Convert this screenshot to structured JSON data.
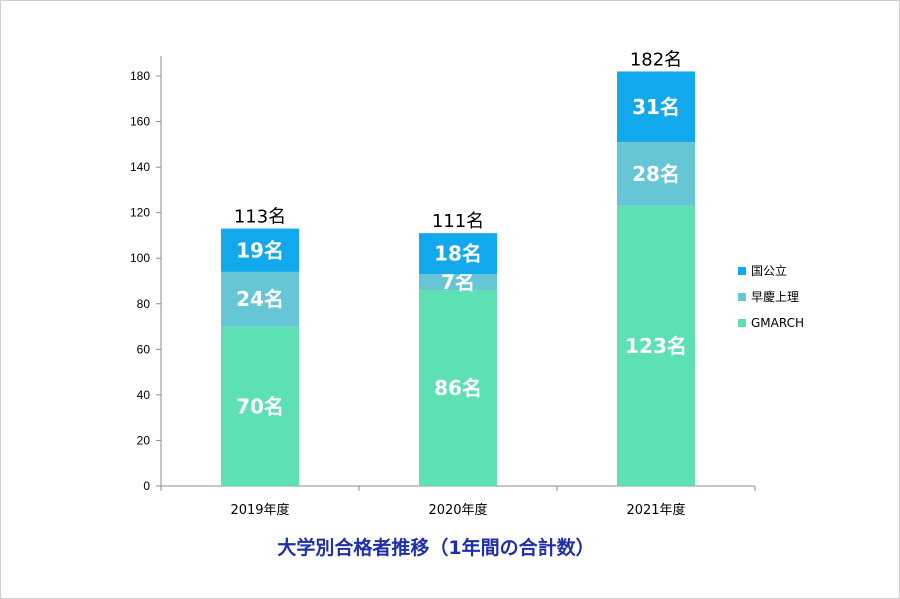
{
  "chart_data": {
    "type": "bar",
    "stacked": true,
    "title": "大学別合格者推移（1年間の合計数）",
    "categories": [
      "2019年度",
      "2020年度",
      "2021年度"
    ],
    "series": [
      {
        "name": "GMARCH",
        "values": [
          70,
          86,
          123
        ],
        "labels": [
          "70名",
          "86名",
          "123名"
        ],
        "color": "#5de0b3"
      },
      {
        "name": "早慶上理",
        "values": [
          24,
          7,
          28
        ],
        "labels": [
          "24名",
          "7名",
          "28名"
        ],
        "color": "#67c6d6"
      },
      {
        "name": "国公立",
        "values": [
          19,
          18,
          31
        ],
        "labels": [
          "19名",
          "18名",
          "31名"
        ],
        "color": "#12a9ec"
      }
    ],
    "totals": [
      "113名",
      "111名",
      "182名"
    ],
    "ylim": [
      0,
      180
    ],
    "yticks": [
      "0",
      "20",
      "40",
      "60",
      "80",
      "100",
      "120",
      "140",
      "160",
      "180"
    ],
    "legend_position": "right",
    "grid": false
  }
}
